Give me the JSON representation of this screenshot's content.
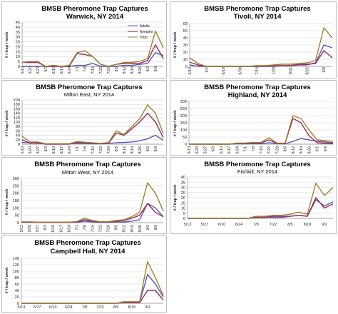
{
  "chart_data": [
    {
      "id": "warwick",
      "type": "line",
      "title": "BMSB Pheromone Trap Captures",
      "subtitle": "Warwick, NY 2014",
      "ylabel": "# / trap / week",
      "ylim": [
        0,
        45
      ],
      "yticks": [
        0,
        5,
        10,
        15,
        20,
        25,
        30,
        35,
        40,
        45
      ],
      "x": [
        "5/13",
        "5/20",
        "5/27",
        "6/3",
        "6/10",
        "6/17",
        "6/24",
        "7/1",
        "7/8",
        "7/15",
        "7/22",
        "7/29",
        "8/5",
        "8/12",
        "8/19",
        "8/26",
        "9/2",
        "9/9",
        "9/16"
      ],
      "x_labels": [
        "5/13",
        "5/20",
        "5/27",
        "6/3",
        "6/10",
        "6/17",
        "6/24",
        "7/1",
        "7/8",
        "7/15",
        "7/22",
        "7/29",
        "8/5",
        "8/12",
        "8/19",
        "8/26",
        "9/2",
        "9/9",
        ""
      ],
      "legend": [
        "Adults",
        "Nymphs",
        "Total"
      ],
      "series": [
        {
          "name": "Adults",
          "color": "#5b57b5",
          "values": [
            0,
            0,
            0,
            0,
            0,
            0,
            0,
            1,
            1,
            3,
            0,
            0,
            0,
            1,
            1,
            2,
            3,
            14,
            11
          ]
        },
        {
          "name": "Nymphs",
          "color": "#9b2a57",
          "values": [
            4,
            4,
            4,
            0,
            0,
            0,
            0,
            13,
            12,
            10,
            2,
            0,
            2,
            3,
            3,
            3,
            6,
            22,
            8
          ]
        },
        {
          "name": "Total",
          "color": "#9c8430",
          "values": [
            4,
            5,
            5,
            0,
            1,
            0,
            1,
            14,
            16,
            10,
            2,
            0,
            2,
            4,
            4,
            5,
            8,
            36,
            19
          ]
        }
      ]
    },
    {
      "id": "tivoli",
      "type": "line",
      "title": "BMSB Pheromone Trap Captures",
      "subtitle": "Tivoli, NY 2014",
      "ylabel": "# / trap / week",
      "ylim": [
        0,
        60
      ],
      "yticks": [
        0,
        10,
        20,
        30,
        40,
        50,
        60
      ],
      "x": [
        "5/19",
        "5/26",
        "6/2",
        "6/9",
        "6/16",
        "6/23",
        "6/30",
        "7/7",
        "7/14",
        "7/21",
        "7/28",
        "8/4",
        "8/11",
        "8/18",
        "8/25",
        "9/1",
        "9/8",
        "9/15"
      ],
      "x_labels": [
        "5/19",
        "",
        "6/2",
        "",
        "6/16",
        "",
        "6/30",
        "",
        "7/14",
        "",
        "7/28",
        "",
        "8/11",
        "",
        "8/25",
        "",
        "9/8",
        ""
      ],
      "series": [
        {
          "name": "Adults",
          "color": "#5b57b5",
          "values": [
            2,
            0,
            0,
            0,
            0,
            0,
            0,
            0,
            0,
            0,
            0,
            1,
            1,
            2,
            2,
            5,
            30,
            26
          ]
        },
        {
          "name": "Nymphs",
          "color": "#9b2a57",
          "values": [
            6,
            2,
            0,
            0,
            0,
            0,
            0,
            0,
            0,
            0,
            1,
            1,
            1,
            3,
            3,
            4,
            22,
            12
          ]
        },
        {
          "name": "Total",
          "color": "#9c8430",
          "values": [
            12,
            4,
            0,
            0,
            0,
            0,
            0,
            0,
            1,
            1,
            2,
            3,
            3,
            4,
            5,
            8,
            54,
            40
          ]
        }
      ]
    },
    {
      "id": "milton-east",
      "type": "line",
      "title": "BMSB Pheromone Trap Captures",
      "subtitle": "Milton East, NY 2014",
      "ylabel": "# / trap / week",
      "ylim": [
        0,
        200
      ],
      "yticks": [
        0,
        20,
        40,
        60,
        80,
        100,
        120,
        140,
        160,
        180,
        200
      ],
      "x": [
        "5/13",
        "5/20",
        "5/27",
        "6/3",
        "6/10",
        "6/17",
        "6/24",
        "7/1",
        "7/8",
        "7/15",
        "7/22",
        "7/29",
        "8/5",
        "8/12",
        "8/19",
        "8/26",
        "9/2",
        "9/9",
        "9/16"
      ],
      "x_labels": [
        "5/13",
        "5/20",
        "5/27",
        "6/3",
        "6/10",
        "6/17",
        "6/24",
        "7/1",
        "7/8",
        "7/15",
        "7/22",
        "7/29",
        "8/5",
        "8/12",
        "8/19",
        "8/26",
        "9/2",
        "9/9",
        ""
      ],
      "series": [
        {
          "name": "Adults",
          "color": "#5b57b5",
          "values": [
            8,
            6,
            4,
            2,
            2,
            2,
            2,
            4,
            3,
            2,
            2,
            3,
            6,
            8,
            10,
            15,
            25,
            40,
            18
          ]
        },
        {
          "name": "Nymphs",
          "color": "#9b2a57",
          "values": [
            20,
            4,
            6,
            0,
            0,
            0,
            0,
            8,
            6,
            4,
            2,
            4,
            50,
            40,
            70,
            100,
            140,
            100,
            30
          ]
        },
        {
          "name": "Total",
          "color": "#9c8430",
          "values": [
            36,
            10,
            10,
            2,
            2,
            2,
            2,
            12,
            9,
            6,
            4,
            7,
            60,
            44,
            80,
            115,
            178,
            140,
            48
          ]
        }
      ]
    },
    {
      "id": "highland",
      "type": "line",
      "title": "BMSB Pheromone Trap Captures",
      "subtitle": "Highland, NY 2014",
      "ylabel": "# / trap / week",
      "ylim": [
        0,
        300
      ],
      "yticks": [
        0,
        50,
        100,
        150,
        200,
        250,
        300
      ],
      "x": [
        "5/13",
        "5/20",
        "5/27",
        "6/3",
        "6/10",
        "6/17",
        "6/24",
        "7/1",
        "7/8",
        "7/15",
        "7/22",
        "7/29",
        "8/5",
        "8/12",
        "8/19",
        "8/26",
        "9/2",
        "9/9",
        "9/16"
      ],
      "x_labels": [
        "5/13",
        "5/20",
        "5/27",
        "6/3",
        "6/10",
        "6/17",
        "6/24",
        "7/1",
        "7/8",
        "7/15",
        "7/22",
        "7/29",
        "8/5",
        "8/12",
        "8/19",
        "8/26",
        "9/2",
        "9/9",
        ""
      ],
      "series": [
        {
          "name": "Adults",
          "color": "#5b57b5",
          "values": [
            0,
            0,
            0,
            0,
            0,
            0,
            2,
            2,
            3,
            3,
            10,
            3,
            2,
            20,
            40,
            30,
            20,
            15,
            10
          ]
        },
        {
          "name": "Nymphs",
          "color": "#9b2a57",
          "values": [
            0,
            0,
            0,
            0,
            0,
            0,
            5,
            5,
            8,
            8,
            30,
            5,
            5,
            180,
            150,
            60,
            10,
            5,
            5
          ]
        },
        {
          "name": "Total",
          "color": "#9c8430",
          "values": [
            0,
            0,
            0,
            0,
            0,
            0,
            8,
            8,
            12,
            12,
            45,
            8,
            7,
            200,
            180,
            100,
            30,
            25,
            20
          ]
        }
      ]
    },
    {
      "id": "milton-west",
      "type": "line",
      "title": "BMSB Pheromone Trap Captures",
      "subtitle": "Milton West, NY 2014",
      "ylabel": "# / trap / week",
      "ylim": [
        0,
        300
      ],
      "yticks": [
        0,
        50,
        100,
        150,
        200,
        250,
        300
      ],
      "x": [
        "5/13",
        "5/20",
        "5/27",
        "6/3",
        "6/10",
        "6/17",
        "6/24",
        "7/1",
        "7/8",
        "7/15",
        "7/22",
        "7/29",
        "8/5",
        "8/12",
        "8/19",
        "8/26",
        "9/2",
        "9/9",
        "9/16"
      ],
      "x_labels": [
        "5/13",
        "5/20",
        "5/27",
        "6/3",
        "6/10",
        "6/17",
        "6/24",
        "7/1",
        "7/8",
        "7/15",
        "7/22",
        "7/29",
        "8/5",
        "8/12",
        "8/19",
        "8/26",
        "9/2",
        "9/9",
        ""
      ],
      "series": [
        {
          "name": "Adults",
          "color": "#5b57b5",
          "values": [
            2,
            2,
            2,
            2,
            2,
            2,
            2,
            2,
            10,
            5,
            2,
            2,
            5,
            5,
            10,
            20,
            130,
            100,
            40
          ]
        },
        {
          "name": "Nymphs",
          "color": "#9b2a57",
          "values": [
            4,
            4,
            2,
            2,
            2,
            2,
            2,
            5,
            20,
            10,
            5,
            5,
            10,
            15,
            30,
            50,
            130,
            70,
            40
          ]
        },
        {
          "name": "Total",
          "color": "#9c8430",
          "values": [
            6,
            6,
            4,
            4,
            4,
            4,
            4,
            7,
            30,
            15,
            7,
            7,
            15,
            20,
            40,
            70,
            270,
            200,
            80
          ]
        }
      ]
    },
    {
      "id": "fishkill",
      "type": "line",
      "title": "BMSB Pheromone Trap Captures",
      "subtitle": "Fishkill, NY 2014",
      "ylabel": "# / trap / week",
      "ylim": [
        0,
        40
      ],
      "yticks": [
        0,
        5,
        10,
        15,
        20,
        25,
        30,
        35,
        40
      ],
      "x": [
        "5/13",
        "5/20",
        "5/27",
        "6/3",
        "6/10",
        "6/17",
        "6/24",
        "7/1",
        "7/8",
        "7/15",
        "7/22",
        "7/29",
        "8/5",
        "8/12",
        "8/19",
        "8/26",
        "9/2",
        "9/9"
      ],
      "x_labels": [
        "5/13",
        "",
        "5/27",
        "",
        "6/10",
        "",
        "6/24",
        "",
        "7/8",
        "",
        "7/22",
        "",
        "8/5",
        "",
        "8/19",
        "",
        "9/2",
        ""
      ],
      "series": [
        {
          "name": "Adults",
          "color": "#5b57b5",
          "values": [
            0,
            0,
            0,
            0,
            0,
            0,
            0,
            0,
            1,
            1,
            1,
            1,
            2,
            3,
            2,
            18,
            12,
            16
          ]
        },
        {
          "name": "Nymphs",
          "color": "#9b2a57",
          "values": [
            0,
            0,
            0,
            0,
            0,
            0,
            0,
            0,
            1,
            1,
            2,
            2,
            2,
            3,
            2,
            20,
            10,
            14
          ]
        },
        {
          "name": "Total",
          "color": "#9c8430",
          "values": [
            0,
            0,
            0,
            0,
            0,
            0,
            0,
            0,
            2,
            2,
            3,
            3,
            4,
            6,
            4,
            34,
            22,
            30
          ]
        }
      ]
    },
    {
      "id": "campbell-hall",
      "type": "line",
      "title": "BMSB Pheromone Trap Captures",
      "subtitle": "Campbell Hall, NY 2014",
      "ylabel": "# / trap / week",
      "ylim": [
        0,
        140
      ],
      "yticks": [
        0,
        20,
        40,
        60,
        80,
        100,
        120,
        140
      ],
      "x": [
        "5/13",
        "5/20",
        "5/27",
        "6/3",
        "6/10",
        "6/17",
        "6/24",
        "7/1",
        "7/8",
        "7/15",
        "7/22",
        "7/29",
        "8/5",
        "8/12",
        "8/19",
        "8/26",
        "9/2",
        "9/9",
        "9/16"
      ],
      "x_labels": [
        "5/13",
        "",
        "5/27",
        "",
        "6/10",
        "",
        "6/24",
        "",
        "7/8",
        "",
        "7/22",
        "",
        "8/5",
        "",
        "8/19",
        "",
        "9/2",
        "",
        ""
      ],
      "series": [
        {
          "name": "Adults",
          "color": "#5b57b5",
          "values": [
            0,
            0,
            0,
            0,
            0,
            0,
            0,
            0,
            0,
            0,
            0,
            0,
            0,
            2,
            2,
            2,
            90,
            60,
            20
          ]
        },
        {
          "name": "Nymphs",
          "color": "#9b2a57",
          "values": [
            0,
            0,
            0,
            0,
            0,
            0,
            0,
            0,
            0,
            0,
            0,
            0,
            0,
            2,
            2,
            2,
            40,
            40,
            10
          ]
        },
        {
          "name": "Total",
          "color": "#9c8430",
          "values": [
            0,
            0,
            0,
            0,
            0,
            0,
            0,
            0,
            0,
            0,
            0,
            0,
            0,
            5,
            5,
            5,
            130,
            80,
            25
          ]
        }
      ]
    }
  ]
}
